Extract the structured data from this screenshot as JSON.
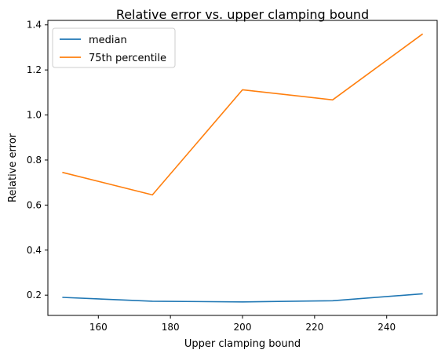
{
  "chart_data": {
    "type": "line",
    "title": "Relative error vs. upper clamping bound",
    "xlabel": "Upper clamping bound",
    "ylabel": "Relative error",
    "x": [
      150,
      175,
      200,
      225,
      250
    ],
    "xlim": [
      146,
      254
    ],
    "ylim": [
      0.11,
      1.42
    ],
    "xticks": [
      160,
      180,
      200,
      220,
      240
    ],
    "yticks": [
      0.2,
      0.4,
      0.6,
      0.8,
      1.0,
      1.2,
      1.4
    ],
    "grid": false,
    "legend_position": "top-left",
    "series": [
      {
        "name": "median",
        "color": "#1f77b4",
        "values": [
          0.19,
          0.173,
          0.17,
          0.175,
          0.206
        ]
      },
      {
        "name": "75th percentile",
        "color": "#ff7f0e",
        "values": [
          0.745,
          0.645,
          1.112,
          1.067,
          1.36
        ]
      }
    ]
  }
}
